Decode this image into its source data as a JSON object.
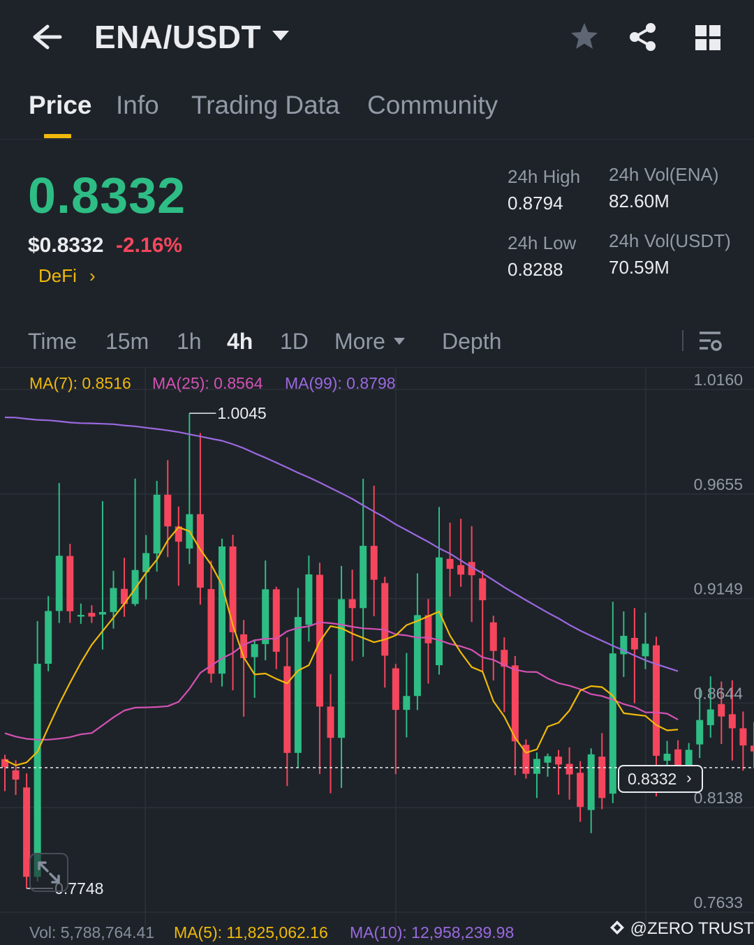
{
  "header": {
    "title": "ENA/USDT",
    "icons": [
      "arrow-left-icon",
      "caret-down-icon",
      "star-icon",
      "share-icon",
      "grid-icon"
    ]
  },
  "tabs": [
    {
      "label": "Price",
      "active": true
    },
    {
      "label": "Info",
      "active": false
    },
    {
      "label": "Trading Data",
      "active": false
    },
    {
      "label": "Community",
      "active": false
    }
  ],
  "ticker": {
    "last_price": "0.8332",
    "usd_price": "$0.8332",
    "change_pct": "-2.16%",
    "tag": "DeFi",
    "tag_chevron": "›",
    "high_label": "24h High",
    "high_value": "0.8794",
    "low_label": "24h Low",
    "low_value": "0.8288",
    "vol_base_label": "24h Vol(ENA)",
    "vol_base_value": "82.60M",
    "vol_quote_label": "24h Vol(USDT)",
    "vol_quote_value": "70.59M"
  },
  "timeframes": [
    {
      "label": "Time",
      "active": false
    },
    {
      "label": "15m",
      "active": false
    },
    {
      "label": "1h",
      "active": false
    },
    {
      "label": "4h",
      "active": true
    },
    {
      "label": "1D",
      "active": false
    },
    {
      "label": "More",
      "active": false
    },
    {
      "label": "Depth",
      "active": false
    }
  ],
  "indicators": {
    "ma7": "MA(7): 0.8516",
    "ma25": "MA(25): 0.8564",
    "ma99": "MA(99): 0.8798"
  },
  "volume": {
    "vol": "Vol: 5,788,764.41",
    "ma5": "MA(5): 11,825,062.16",
    "ma10": "MA(10): 12,958,239.98"
  },
  "colors": {
    "background": "#1e2329",
    "up": "#2ebd85",
    "down": "#f6465d",
    "accent": "#f0b90b",
    "ma7": "#f0b90b",
    "ma25": "#d452b5",
    "ma99": "#9b69e0",
    "muted": "#929aa5"
  },
  "watermark": "@ZERO TRUST",
  "chart_data": {
    "type": "candlestick",
    "y_ticks": [
      "1.0160",
      "0.9655",
      "0.9149",
      "0.8644",
      "0.8138",
      "0.7633"
    ],
    "ylim": [
      0.7633,
      1.016
    ],
    "high_marker": "1.0045",
    "low_marker": "0.7748",
    "current_price": "0.8332",
    "candles": [
      {
        "o": 0.8373,
        "c": 0.8334,
        "h": 0.8394,
        "l": 0.8218
      },
      {
        "o": 0.8319,
        "c": 0.8274,
        "h": 0.8367,
        "l": 0.82
      },
      {
        "o": 0.8236,
        "c": 0.7804,
        "h": 0.8304,
        "l": 0.7748
      },
      {
        "o": 0.7804,
        "c": 0.8834,
        "h": 0.904,
        "l": 0.7782
      },
      {
        "o": 0.8834,
        "c": 0.9089,
        "h": 0.9161,
        "l": 0.8798
      },
      {
        "o": 0.9089,
        "c": 0.9356,
        "h": 0.9708,
        "l": 0.9031
      },
      {
        "o": 0.9355,
        "c": 0.9088,
        "h": 0.9413,
        "l": 0.9032
      },
      {
        "o": 0.9062,
        "c": 0.907,
        "h": 0.9125,
        "l": 0.9027
      },
      {
        "o": 0.908,
        "c": 0.9062,
        "h": 0.9117,
        "l": 0.9031
      },
      {
        "o": 0.9072,
        "c": 0.9084,
        "h": 0.962,
        "l": 0.8903
      },
      {
        "o": 0.9084,
        "c": 0.92,
        "h": 0.9283,
        "l": 0.9004
      },
      {
        "o": 0.9196,
        "c": 0.9123,
        "h": 0.9346,
        "l": 0.9061
      },
      {
        "o": 0.9123,
        "c": 0.9287,
        "h": 0.9729,
        "l": 0.9113
      },
      {
        "o": 0.9277,
        "c": 0.9369,
        "h": 0.9456,
        "l": 0.9145
      },
      {
        "o": 0.9367,
        "c": 0.9651,
        "h": 0.9718,
        "l": 0.928
      },
      {
        "o": 0.9651,
        "c": 0.9498,
        "h": 0.9818,
        "l": 0.935
      },
      {
        "o": 0.9498,
        "c": 0.9424,
        "h": 0.9594,
        "l": 0.9211
      },
      {
        "o": 0.9391,
        "c": 0.9557,
        "h": 1.0045,
        "l": 0.9316
      },
      {
        "o": 0.9557,
        "c": 0.9202,
        "h": 0.9949,
        "l": 0.912
      },
      {
        "o": 0.9195,
        "c": 0.8786,
        "h": 0.9332,
        "l": 0.8742
      },
      {
        "o": 0.8786,
        "c": 0.9401,
        "h": 0.9439,
        "l": 0.8724
      },
      {
        "o": 0.9401,
        "c": 0.8986,
        "h": 0.9458,
        "l": 0.8706
      },
      {
        "o": 0.8976,
        "c": 0.8861,
        "h": 0.9046,
        "l": 0.8578
      },
      {
        "o": 0.8866,
        "c": 0.8929,
        "h": 0.8952,
        "l": 0.8669
      },
      {
        "o": 0.8929,
        "c": 0.9194,
        "h": 0.9333,
        "l": 0.8851
      },
      {
        "o": 0.9194,
        "c": 0.8892,
        "h": 0.9206,
        "l": 0.8808
      },
      {
        "o": 0.8822,
        "c": 0.8403,
        "h": 0.8962,
        "l": 0.8243
      },
      {
        "o": 0.8403,
        "c": 0.906,
        "h": 0.92,
        "l": 0.8331
      },
      {
        "o": 0.9022,
        "c": 0.9266,
        "h": 0.9357,
        "l": 0.8941
      },
      {
        "o": 0.9264,
        "c": 0.8627,
        "h": 0.9322,
        "l": 0.8301
      },
      {
        "o": 0.8627,
        "c": 0.8476,
        "h": 0.8784,
        "l": 0.8208
      },
      {
        "o": 0.8476,
        "c": 0.9146,
        "h": 0.9307,
        "l": 0.8234
      },
      {
        "o": 0.9146,
        "c": 0.9103,
        "h": 0.9289,
        "l": 0.8847
      },
      {
        "o": 0.9103,
        "c": 0.9404,
        "h": 0.9728,
        "l": 0.8868
      },
      {
        "o": 0.9404,
        "c": 0.924,
        "h": 0.9695,
        "l": 0.9064
      },
      {
        "o": 0.9224,
        "c": 0.8873,
        "h": 0.9254,
        "l": 0.8719
      },
      {
        "o": 0.8812,
        "c": 0.8611,
        "h": 0.8833,
        "l": 0.83
      },
      {
        "o": 0.8611,
        "c": 0.8678,
        "h": 0.8886,
        "l": 0.8478
      },
      {
        "o": 0.8678,
        "c": 0.9069,
        "h": 0.9271,
        "l": 0.861
      },
      {
        "o": 0.9069,
        "c": 0.8933,
        "h": 0.9147,
        "l": 0.8738
      },
      {
        "o": 0.8827,
        "c": 0.9348,
        "h": 0.9592,
        "l": 0.8782
      },
      {
        "o": 0.9341,
        "c": 0.9293,
        "h": 0.9516,
        "l": 0.9159
      },
      {
        "o": 0.9311,
        "c": 0.9265,
        "h": 0.9535,
        "l": 0.9206
      },
      {
        "o": 0.9326,
        "c": 0.9262,
        "h": 0.9499,
        "l": 0.9036
      },
      {
        "o": 0.9247,
        "c": 0.9141,
        "h": 0.9285,
        "l": 0.8797
      },
      {
        "o": 0.9034,
        "c": 0.8896,
        "h": 0.9066,
        "l": 0.8753
      },
      {
        "o": 0.8901,
        "c": 0.882,
        "h": 0.8962,
        "l": 0.86
      },
      {
        "o": 0.8826,
        "c": 0.8459,
        "h": 0.8871,
        "l": 0.8295
      },
      {
        "o": 0.8442,
        "c": 0.8302,
        "h": 0.8468,
        "l": 0.8279
      },
      {
        "o": 0.8302,
        "c": 0.8374,
        "h": 0.8405,
        "l": 0.8185
      },
      {
        "o": 0.8356,
        "c": 0.8387,
        "h": 0.84,
        "l": 0.8288
      },
      {
        "o": 0.8385,
        "c": 0.8347,
        "h": 0.8417,
        "l": 0.8201
      },
      {
        "o": 0.835,
        "c": 0.8299,
        "h": 0.843,
        "l": 0.8177
      },
      {
        "o": 0.8307,
        "c": 0.8142,
        "h": 0.8363,
        "l": 0.807
      },
      {
        "o": 0.8127,
        "c": 0.8396,
        "h": 0.8425,
        "l": 0.8015
      },
      {
        "o": 0.8385,
        "c": 0.8185,
        "h": 0.8499,
        "l": 0.8131
      },
      {
        "o": 0.8206,
        "c": 0.8884,
        "h": 0.9134,
        "l": 0.816
      },
      {
        "o": 0.888,
        "c": 0.8969,
        "h": 0.9087,
        "l": 0.877
      },
      {
        "o": 0.8959,
        "c": 0.8903,
        "h": 0.9103,
        "l": 0.8643
      },
      {
        "o": 0.887,
        "c": 0.8931,
        "h": 0.9081,
        "l": 0.8808
      },
      {
        "o": 0.8923,
        "c": 0.8389,
        "h": 0.8965,
        "l": 0.8193
      },
      {
        "o": 0.8365,
        "c": 0.8399,
        "h": 0.8461,
        "l": 0.8312
      },
      {
        "o": 0.842,
        "c": 0.8339,
        "h": 0.8464,
        "l": 0.827
      },
      {
        "o": 0.8334,
        "c": 0.8418,
        "h": 0.8451,
        "l": 0.827
      },
      {
        "o": 0.8444,
        "c": 0.8562,
        "h": 0.872,
        "l": 0.8378
      },
      {
        "o": 0.8537,
        "c": 0.8613,
        "h": 0.8773,
        "l": 0.8477
      },
      {
        "o": 0.8639,
        "c": 0.8579,
        "h": 0.8748,
        "l": 0.8446
      },
      {
        "o": 0.859,
        "c": 0.8522,
        "h": 0.8754,
        "l": 0.8366
      },
      {
        "o": 0.8522,
        "c": 0.8439,
        "h": 0.8603,
        "l": 0.8317
      },
      {
        "o": 0.8438,
        "c": 0.841,
        "h": 0.8551,
        "l": 0.8328
      },
      {
        "o": 0.8403,
        "c": 0.8332,
        "h": 0.8486,
        "l": 0.8288
      }
    ],
    "ma7": [
      0.8369,
      0.8343,
      0.8357,
      0.8409,
      0.8526,
      0.8639,
      0.8742,
      0.8839,
      0.8926,
      0.8992,
      0.9057,
      0.9124,
      0.9197,
      0.9273,
      0.9337,
      0.9431,
      0.9494,
      0.9474,
      0.9386,
      0.9313,
      0.9215,
      0.9019,
      0.8865,
      0.8782,
      0.8787,
      0.8761,
      0.8739,
      0.8801,
      0.8827,
      0.8941,
      0.9016,
      0.9005,
      0.898,
      0.8959,
      0.8938,
      0.8951,
      0.8971,
      0.9021,
      0.9041,
      0.9064,
      0.9086,
      0.897,
      0.8888,
      0.8818,
      0.8796,
      0.8653,
      0.8579,
      0.8475,
      0.8404,
      0.842,
      0.853,
      0.8549,
      0.8608,
      0.8705,
      0.8726,
      0.8721,
      0.868,
      0.8595,
      0.8588,
      0.8582,
      0.8538,
      0.8512,
      0.8516
    ],
    "ma25": [
      0.8498,
      0.8482,
      0.8471,
      0.8467,
      0.8467,
      0.8472,
      0.8479,
      0.8493,
      0.8499,
      0.8537,
      0.8575,
      0.8608,
      0.8622,
      0.8623,
      0.8625,
      0.8629,
      0.865,
      0.8713,
      0.879,
      0.8825,
      0.886,
      0.8886,
      0.8926,
      0.8947,
      0.8955,
      0.8955,
      0.8991,
      0.9008,
      0.9015,
      0.9034,
      0.903,
      0.9023,
      0.9013,
      0.9005,
      0.9002,
      0.8998,
      0.8976,
      0.8971,
      0.896,
      0.8961,
      0.8948,
      0.893,
      0.8918,
      0.8901,
      0.8865,
      0.8853,
      0.8827,
      0.8805,
      0.8795,
      0.8794,
      0.8763,
      0.874,
      0.8728,
      0.8711,
      0.8687,
      0.8678,
      0.866,
      0.8639,
      0.8625,
      0.8599,
      0.8599,
      0.8593,
      0.8564
    ],
    "ma99": [
      1.0025,
      1.0024,
      1.0018,
      1.0013,
      1.0011,
      1.0006,
      1.0,
      0.9997,
      0.9996,
      0.9994,
      0.9992,
      0.9986,
      0.9982,
      0.9975,
      0.9969,
      0.9962,
      0.9954,
      0.9943,
      0.9933,
      0.9922,
      0.9912,
      0.9895,
      0.9876,
      0.9852,
      0.983,
      0.9806,
      0.9782,
      0.9757,
      0.9735,
      0.971,
      0.9684,
      0.9658,
      0.9631,
      0.96,
      0.957,
      0.9541,
      0.9508,
      0.948,
      0.9451,
      0.9423,
      0.9392,
      0.9366,
      0.9333,
      0.9301,
      0.9271,
      0.9238,
      0.9204,
      0.9172,
      0.9141,
      0.9111,
      0.9081,
      0.9053,
      0.9022,
      0.8994,
      0.8969,
      0.8945,
      0.8921,
      0.8898,
      0.8874,
      0.8851,
      0.8832,
      0.8815,
      0.8798
    ]
  }
}
